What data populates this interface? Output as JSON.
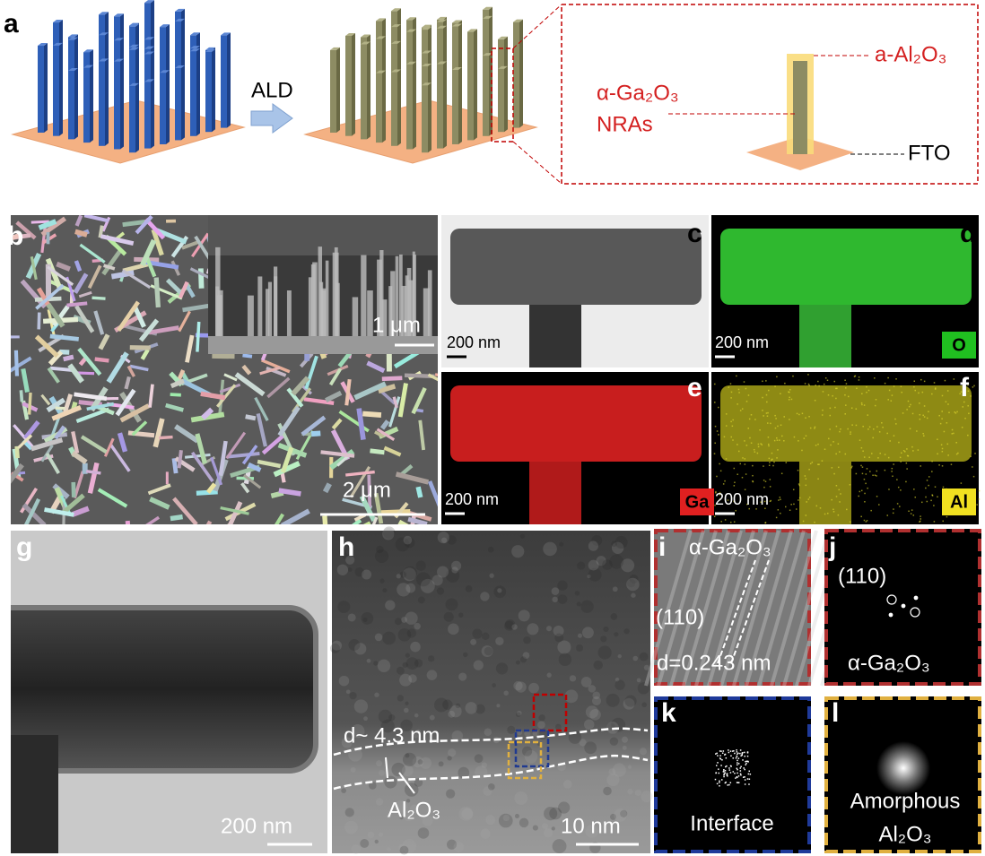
{
  "panel_a": {
    "label": "a",
    "arrow": "ALD",
    "shell": "a-Al₂O₃",
    "core": "α-Ga₂O₃",
    "core_note": "NRAs",
    "substrate": "FTO"
  },
  "panel_b": {
    "label": "b",
    "inset_scale": "1 μm",
    "scale": "2 μm"
  },
  "panel_c": {
    "label": "c",
    "scale": "200 nm"
  },
  "panel_d": {
    "label": "d",
    "scale": "200 nm",
    "element": "O"
  },
  "panel_e": {
    "label": "e",
    "scale": "200 nm",
    "element": "Ga"
  },
  "panel_f": {
    "label": "f",
    "scale": "200 nm",
    "element": "Al"
  },
  "panel_g": {
    "label": "g",
    "scale": "200 nm"
  },
  "panel_h": {
    "label": "h",
    "thickness": "d~ 4.3 nm",
    "layer": "Al₂O₃",
    "scale": "10 nm"
  },
  "panel_i": {
    "label": "i",
    "phase": "α-Ga₂O₃",
    "plane": "(110)",
    "spacing": "d=0.243 nm"
  },
  "panel_j": {
    "label": "j",
    "plane": "(110)",
    "phase": "α-Ga₂O₃"
  },
  "panel_k": {
    "label": "k",
    "caption": "Interface"
  },
  "panel_l": {
    "label": "l",
    "caption_1": "Amorphous",
    "caption_2": "Al₂O₃"
  }
}
